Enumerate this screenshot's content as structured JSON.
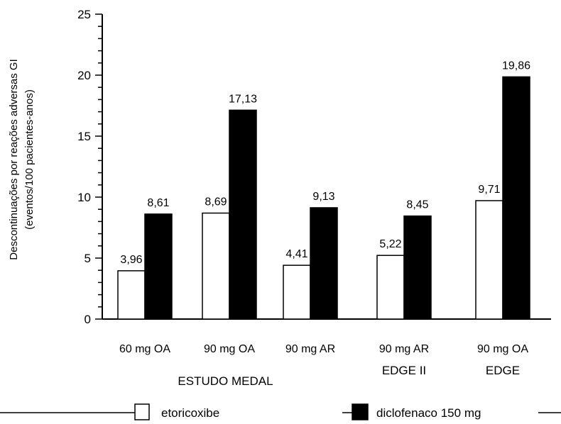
{
  "chart_data": {
    "type": "bar",
    "title": "",
    "ylabel_lines": [
      "Descontinuações por reações adversas GI",
      "(eventos/100 pacientes-anos)"
    ],
    "ylim": [
      0,
      25
    ],
    "yticks": [
      0,
      5,
      10,
      15,
      20,
      25
    ],
    "grid": false,
    "categories": [
      "60 mg OA",
      "90 mg OA",
      "90 mg AR",
      "90 mg AR",
      "90 mg OA"
    ],
    "groups": [
      {
        "label": "ESTUDO MEDAL",
        "categories": [
          0,
          1,
          2
        ]
      },
      {
        "label": "EDGE II",
        "categories": [
          3
        ]
      },
      {
        "label": "EDGE",
        "categories": [
          4
        ]
      }
    ],
    "series": [
      {
        "name": "etoricoxibe",
        "color": "#ffffff",
        "values": [
          3.96,
          8.69,
          4.41,
          5.22,
          9.71
        ],
        "labels": [
          "3,96",
          "8,69",
          "4,41",
          "5,22",
          "9,71"
        ]
      },
      {
        "name": "diclofenaco 150 mg",
        "color": "#000000",
        "values": [
          8.61,
          17.13,
          9.13,
          8.45,
          19.86
        ],
        "labels": [
          "8,61",
          "17,13",
          "9,13",
          "8,45",
          "19,86"
        ]
      }
    ],
    "legend_position": "bottom"
  }
}
